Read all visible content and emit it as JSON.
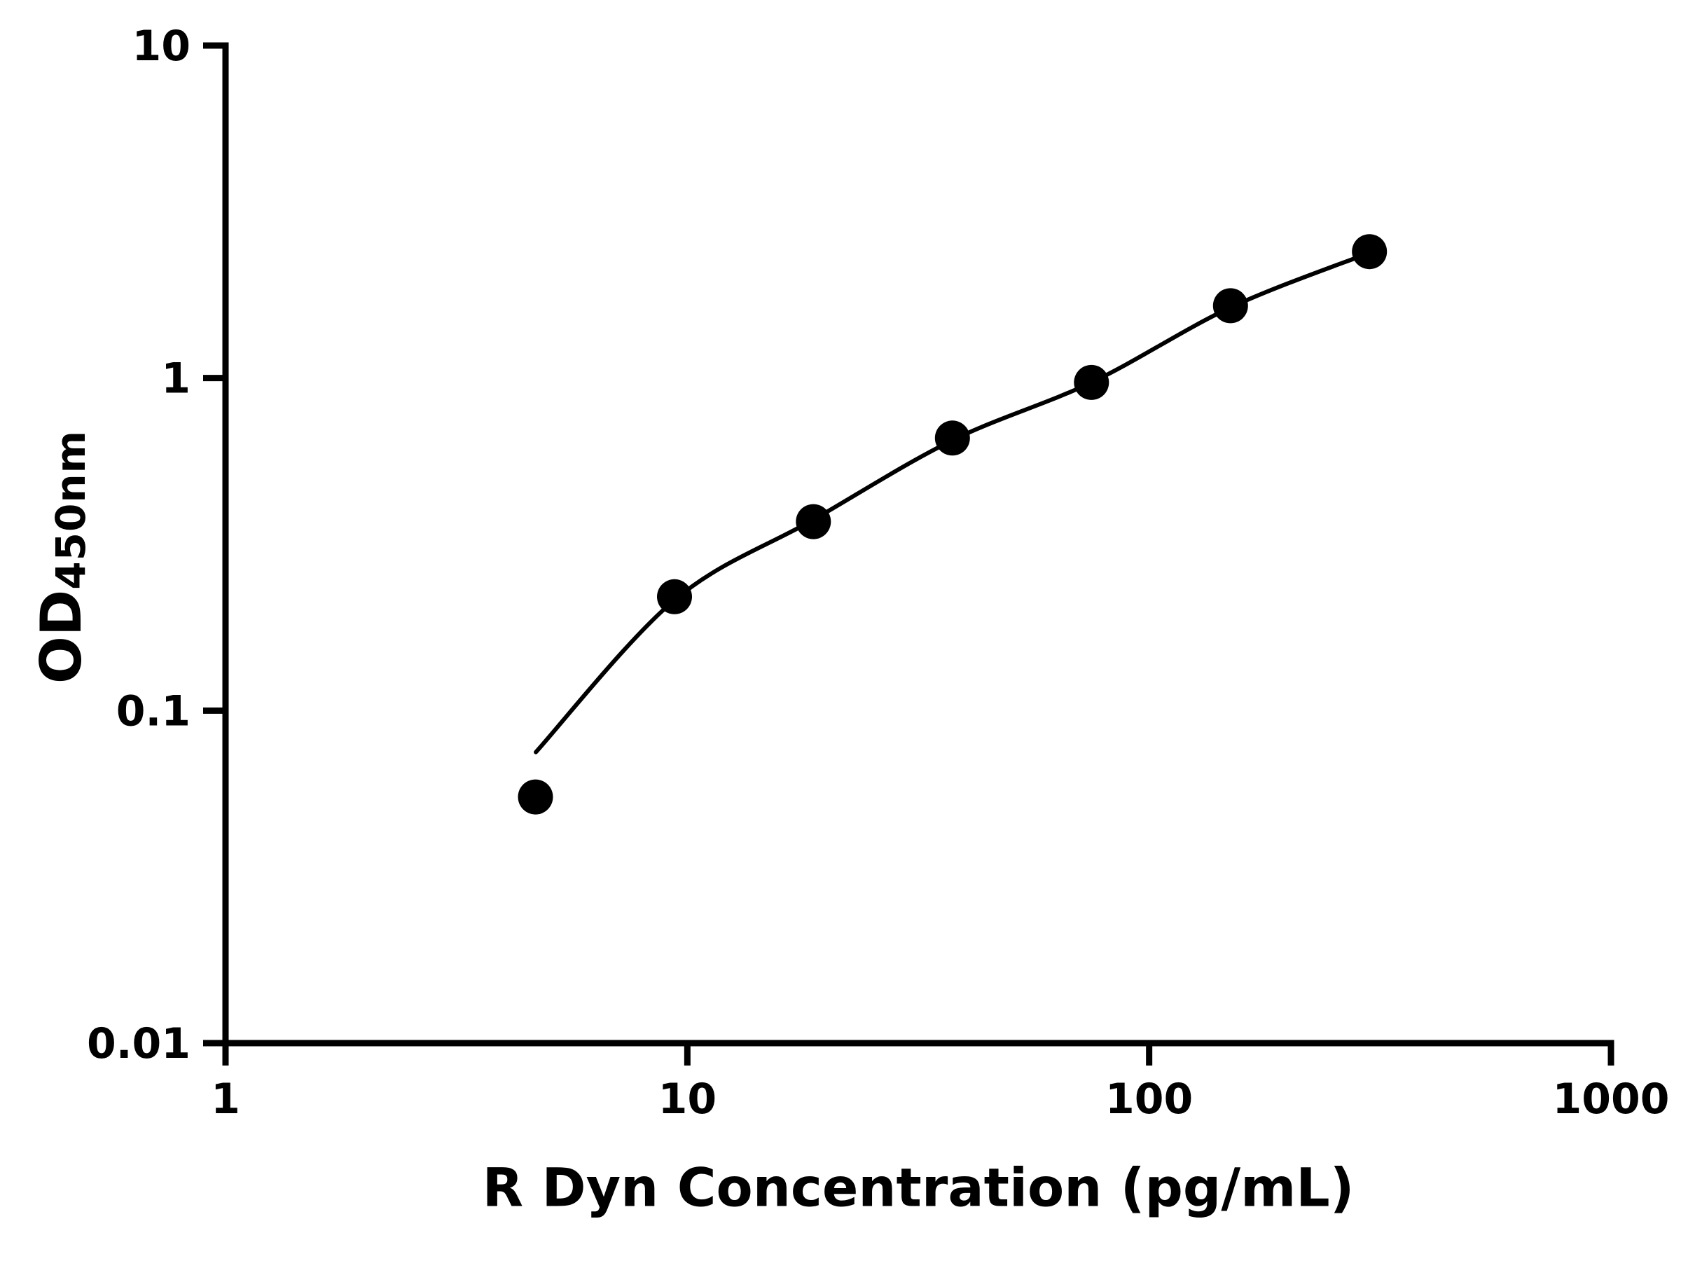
{
  "chart_data": {
    "type": "scatter",
    "title": "",
    "xlabel": "R Dyn Concentration (pg/mL)",
    "ylabel": "OD",
    "ylabel_sub": "450nm",
    "x_scale": "log",
    "y_scale": "log",
    "xlim": [
      1,
      1000
    ],
    "ylim": [
      0.01,
      10
    ],
    "x_tick_labels": [
      "1",
      "10",
      "100",
      "1000"
    ],
    "x_tick_values": [
      1,
      10,
      100,
      1000
    ],
    "y_tick_labels": [
      "0.01",
      "0.1",
      "1",
      "10"
    ],
    "y_tick_values": [
      0.01,
      0.1,
      1,
      10
    ],
    "grid": false,
    "legend": "none",
    "series": [
      {
        "name": "standard-curve-points",
        "x": [
          4.69,
          9.38,
          18.75,
          37.5,
          75,
          150,
          300
        ],
        "y": [
          0.055,
          0.22,
          0.37,
          0.66,
          0.97,
          1.65,
          2.4
        ]
      }
    ],
    "fit_curve": [
      [
        4.7,
        0.075
      ],
      [
        9.38,
        0.215
      ],
      [
        18.75,
        0.375
      ],
      [
        37.5,
        0.65
      ],
      [
        75,
        0.97
      ],
      [
        150,
        1.63
      ],
      [
        300,
        2.38
      ]
    ],
    "colors": {
      "points": "#000000",
      "curve": "#000000",
      "axis": "#000000",
      "background": "#ffffff"
    }
  }
}
